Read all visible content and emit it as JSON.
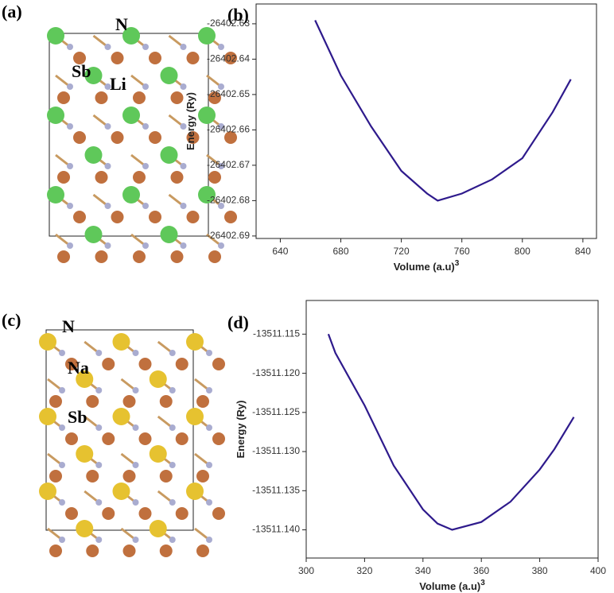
{
  "structures": [
    {
      "panel_label": "(a)",
      "atoms": [
        "N",
        "Sb",
        "Li"
      ]
    },
    {
      "panel_label": "(c)",
      "atoms": [
        "N",
        "Na",
        "Sb"
      ]
    }
  ],
  "chart_data": [
    {
      "type": "line",
      "panel_label": "(b)",
      "ylabel": "Energy (Ry)",
      "xlabel": "Volume (a.u)",
      "xlabel_sup": "3",
      "x": [
        663,
        680,
        700,
        720,
        737,
        744,
        760,
        780,
        800,
        820,
        832
      ],
      "series": [
        {
          "color": "#2e1a8c",
          "values": [
            -26402.629,
            -26402.6446,
            -26402.659,
            -26402.6716,
            -26402.678,
            -26402.68,
            -26402.678,
            -26402.674,
            -26402.668,
            -26402.655,
            -26402.6457
          ]
        }
      ],
      "xlim": [
        624,
        849
      ],
      "xticks": [
        640,
        680,
        720,
        760,
        800,
        840
      ],
      "ylim": [
        -26402.6907,
        -26402.6244
      ],
      "yticks": [
        -26402.63,
        -26402.64,
        -26402.65,
        -26402.66,
        -26402.67,
        -26402.68,
        -26402.69
      ]
    },
    {
      "type": "line",
      "panel_label": "(d)",
      "ylabel": "Energy (Ry)",
      "xlabel": "Volume (a.u)",
      "xlabel_sup": "3",
      "x": [
        307.6,
        310,
        320,
        330,
        340,
        345,
        350,
        360,
        370,
        380,
        385,
        391.7
      ],
      "series": [
        {
          "color": "#2e1a8c",
          "values": [
            -13511.115,
            -13511.1174,
            -13511.1241,
            -13511.1318,
            -13511.1374,
            -13511.1392,
            -13511.14,
            -13511.139,
            -13511.1364,
            -13511.1323,
            -13511.1297,
            -13511.1256
          ]
        }
      ],
      "xlim": [
        300,
        400
      ],
      "xticks": [
        300,
        320,
        340,
        360,
        380,
        400
      ],
      "ylim": [
        -13511.1436,
        -13511.1107
      ],
      "yticks": [
        -13511.115,
        {
          "value": -13511.12,
          "label": "-13511.120"
        },
        -13511.125,
        {
          "value": -13511.13,
          "label": "-13511.130"
        },
        -13511.135,
        {
          "value": -13511.14,
          "label": "-13511.140"
        }
      ]
    }
  ]
}
